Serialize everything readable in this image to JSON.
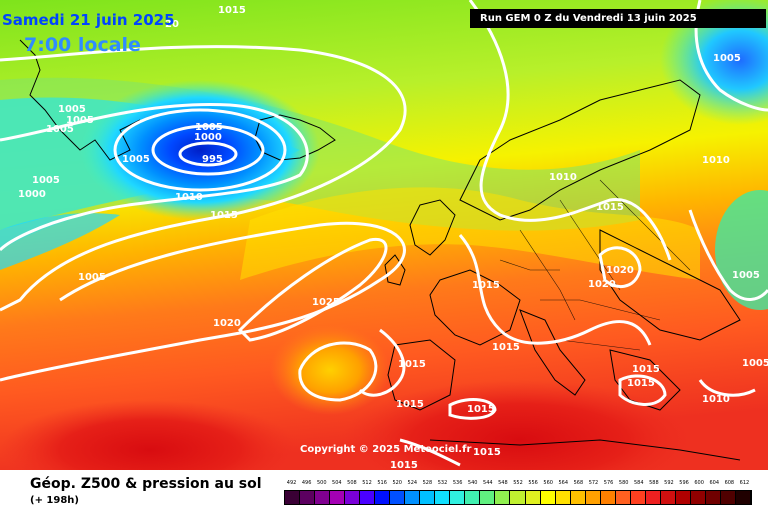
{
  "header": {
    "date": "Samedi 21 juin 2025",
    "time": "7:00 locale",
    "partial_label": "20",
    "top_label": "1015",
    "run": "Run GEM 0 Z du Vendredi 13 juin 2025"
  },
  "copyright": "Copyright © 2025 Meteociel.fr",
  "footer": {
    "title": "Géop. Z500 & pression au sol",
    "subtitle": "(+ 198h)"
  },
  "scale": {
    "labels": [
      "492",
      "496",
      "500",
      "504",
      "508",
      "512",
      "516",
      "520",
      "524",
      "528",
      "532",
      "536",
      "540",
      "544",
      "548",
      "552",
      "556",
      "560",
      "564",
      "568",
      "572",
      "576",
      "580",
      "584",
      "588",
      "592",
      "596",
      "600",
      "604",
      "608",
      "612"
    ],
    "colors": [
      "#3a0035",
      "#5c0060",
      "#800090",
      "#a400b4",
      "#7a00d8",
      "#4a00ff",
      "#0010ff",
      "#0050ff",
      "#0090ff",
      "#00c0ff",
      "#10e0ff",
      "#30f0e0",
      "#40f0b0",
      "#60f080",
      "#90f050",
      "#c0f030",
      "#e0f020",
      "#ffff00",
      "#ffe000",
      "#ffc000",
      "#ffa000",
      "#ff8000",
      "#ff6020",
      "#ff4020",
      "#ee2020",
      "#d01010",
      "#b00000",
      "#900000",
      "#700000",
      "#500000",
      "#200000"
    ]
  },
  "isobars": [
    {
      "value": "1005",
      "pos": "label-1"
    },
    {
      "value": "1005",
      "pos": "label-2"
    },
    {
      "value": "1005",
      "pos": "label-3"
    },
    {
      "value": "1005",
      "pos": "label-4"
    },
    {
      "value": "1000",
      "pos": "label-5"
    },
    {
      "value": "1005",
      "pos": "label-6"
    },
    {
      "value": "1000",
      "pos": "label-7"
    },
    {
      "value": "995",
      "pos": "label-8"
    },
    {
      "value": "1005",
      "pos": "label-9"
    },
    {
      "value": "1010",
      "pos": "label-10"
    },
    {
      "value": "1015",
      "pos": "label-11"
    },
    {
      "value": "1005",
      "pos": "label-12"
    },
    {
      "value": "1025",
      "pos": "label-13"
    },
    {
      "value": "1020",
      "pos": "label-14"
    },
    {
      "value": "1015",
      "pos": "label-15"
    },
    {
      "value": "1015",
      "pos": "label-16"
    },
    {
      "value": "1015",
      "pos": "label-17"
    },
    {
      "value": "1015",
      "pos": "label-18"
    },
    {
      "value": "1015",
      "pos": "label-19"
    },
    {
      "value": "1015",
      "pos": "label-20"
    },
    {
      "value": "1015",
      "pos": "label-21"
    },
    {
      "value": "1010",
      "pos": "label-22"
    },
    {
      "value": "1015",
      "pos": "label-23"
    },
    {
      "value": "1020",
      "pos": "label-24"
    },
    {
      "value": "1020",
      "pos": "label-25"
    },
    {
      "value": "1005",
      "pos": "label-26"
    },
    {
      "value": "1005",
      "pos": "label-27"
    },
    {
      "value": "1010",
      "pos": "label-28"
    },
    {
      "value": "1015",
      "pos": "label-29"
    },
    {
      "value": "1015",
      "pos": "label-30"
    },
    {
      "value": "1010",
      "pos": "label-31"
    },
    {
      "value": "1005",
      "pos": "label-32"
    }
  ]
}
